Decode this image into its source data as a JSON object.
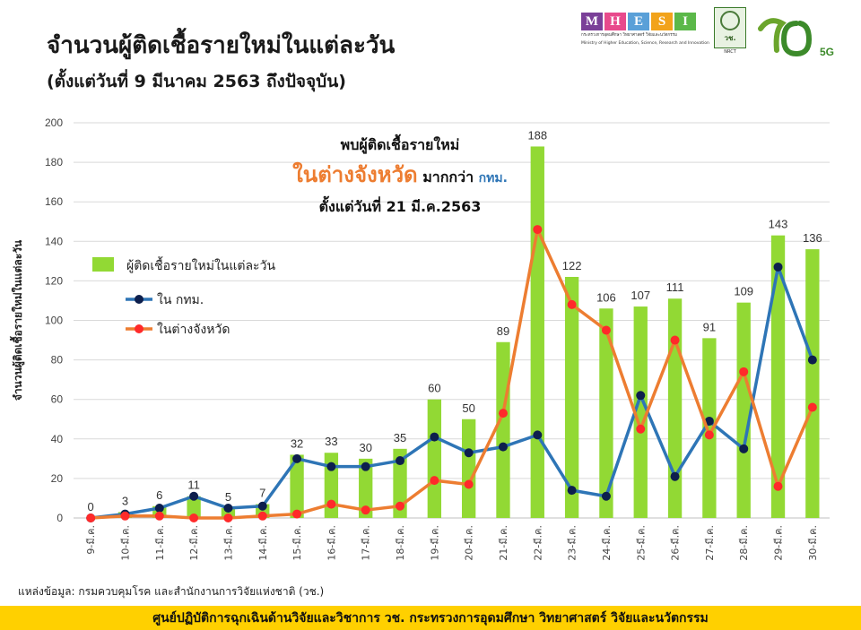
{
  "header": {
    "title": "จำนวนผู้ติดเชื้อรายใหม่ในแต่ละวัน",
    "subtitle": "(ตั้งแต่วันที่ 9 มีนาคม 2563 ถึงปัจจุบัน)"
  },
  "logos": {
    "mhesi_letters": [
      "M",
      "H",
      "E",
      "S",
      "I"
    ],
    "mhesi_colors": [
      "#7a3f98",
      "#e84a8c",
      "#5aa0d8",
      "#f2a31b",
      "#5bb849"
    ],
    "mhesi_subtitle_th": "กระทรวงการอุดมศึกษา วิทยาศาสตร์ วิจัยและนวัตกรรม",
    "mhesi_subtitle_en": "Ministry of Higher Education, Science, Research and Innovation",
    "nrct_label": "วช.",
    "nrct_en": "NRCT",
    "anniv_text": "70",
    "anniv_suffix": "5G"
  },
  "chart_data": {
    "type": "bar",
    "title": "",
    "xlabel": "",
    "ylabel": "จำนวนผู้ติดเชื้อรายใหม่ในแต่ละวัน",
    "ylim": [
      0,
      200
    ],
    "yticks": [
      0,
      20,
      40,
      60,
      80,
      100,
      120,
      140,
      160,
      180,
      200
    ],
    "grid": true,
    "legend_position": "left",
    "categories": [
      "9-มี.ค.",
      "10-มี.ค.",
      "11-มี.ค.",
      "12-มี.ค.",
      "13-มี.ค.",
      "14-มี.ค.",
      "15-มี.ค.",
      "16-มี.ค.",
      "17-มี.ค.",
      "18-มี.ค.",
      "19-มี.ค.",
      "20-มี.ค.",
      "21-มี.ค.",
      "22-มี.ค.",
      "23-มี.ค.",
      "24-มี.ค.",
      "25-มี.ค.",
      "26-มี.ค.",
      "27-มี.ค.",
      "28-มี.ค.",
      "29-มี.ค.",
      "30-มี.ค."
    ],
    "series": [
      {
        "name": "ผู้ติดเชื้อรายใหม่ในแต่ละวัน",
        "kind": "bar",
        "color": "#92d934",
        "values": [
          0,
          3,
          6,
          11,
          5,
          7,
          32,
          33,
          30,
          35,
          60,
          50,
          89,
          188,
          122,
          106,
          107,
          111,
          91,
          109,
          143,
          136
        ]
      },
      {
        "name": "ใน กทม.",
        "kind": "line",
        "color": "#2e75b6",
        "marker_color": "#0d1f4d",
        "values": [
          0,
          2,
          5,
          11,
          5,
          6,
          30,
          26,
          26,
          29,
          41,
          33,
          36,
          42,
          14,
          11,
          62,
          21,
          49,
          35,
          127,
          80
        ]
      },
      {
        "name": "ในต่างจังหวัด",
        "kind": "line",
        "color": "#ed7d31",
        "marker_color": "#ff2a2a",
        "values": [
          0,
          1,
          1,
          0,
          0,
          1,
          2,
          7,
          4,
          6,
          19,
          17,
          53,
          146,
          108,
          95,
          45,
          90,
          42,
          74,
          16,
          56
        ]
      }
    ],
    "annotation": {
      "line1": "พบผู้ติดเชื้อรายใหม่",
      "line2_highlight": "ในต่างจังหวัด",
      "line2_middle": " มากกว่า ",
      "line2_tail": "กทม.",
      "line3": "ตั้งแต่วันที่ 21 มี.ค.2563",
      "highlight_color": "#ed7d31",
      "tail_color": "#2e75b6"
    }
  },
  "footer": {
    "source": "แหล่งข้อมูล: กรมควบคุมโรค และสำนักงานการวิจัยแห่งชาติ (วช.)",
    "banner": "ศูนย์ปฏิบัติการฉุกเฉินด้านวิจัยและวิชาการ    วช.    กระทรวงการอุดมศึกษา วิทยาศาสตร์ วิจัยและนวัตกรรม"
  }
}
